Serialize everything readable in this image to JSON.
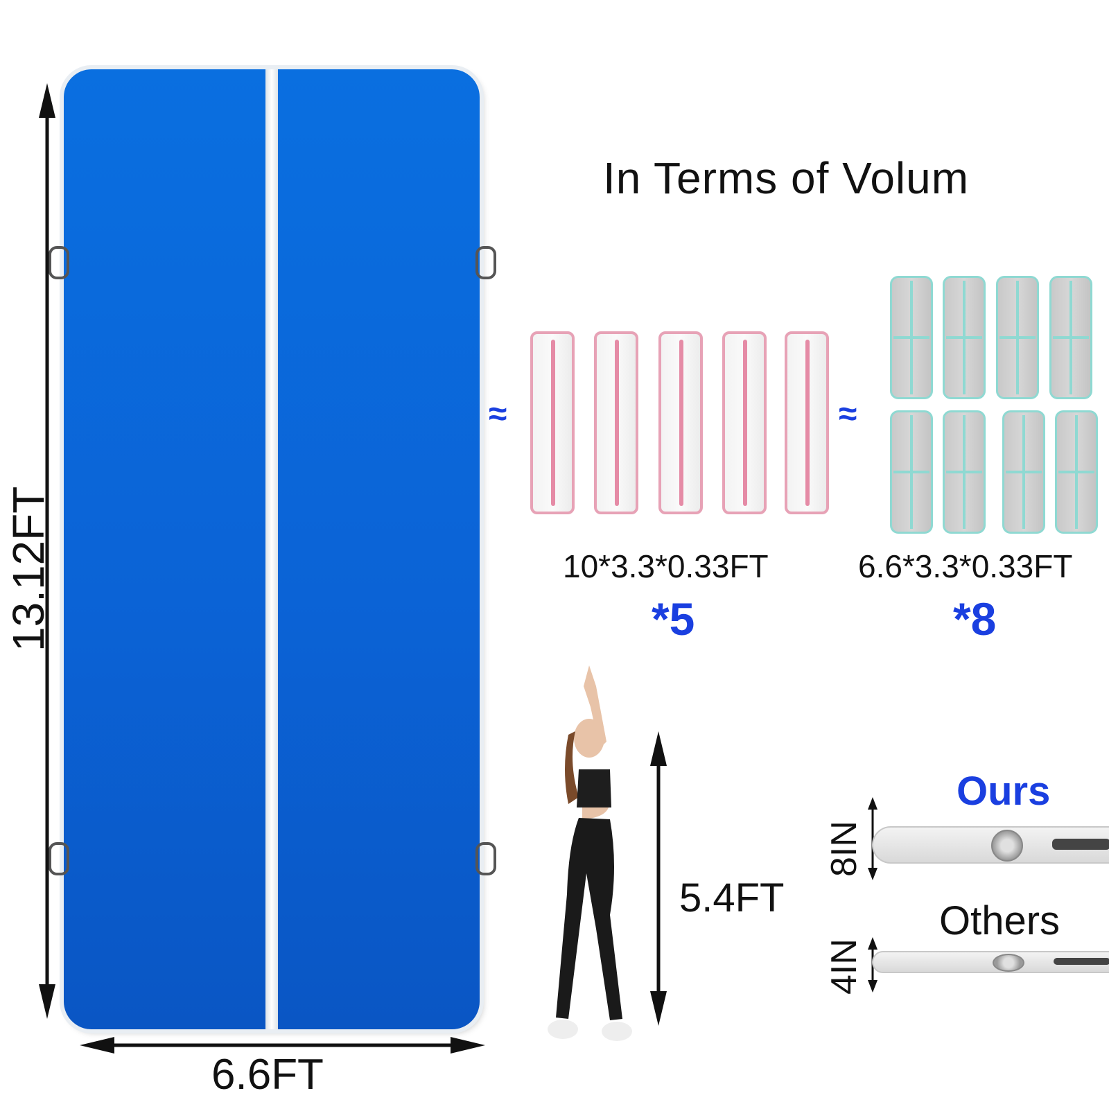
{
  "title": "In Terms of Volum",
  "main_mat": {
    "height_label": "13.12FT",
    "width_label": "6.6FT",
    "color": "#0b63d6"
  },
  "comparison": {
    "approx_symbol": "≈",
    "option_a": {
      "spec": "10*3.3*0.33FT",
      "multiplier": "*5",
      "count": 5,
      "accent": "#e58ba6"
    },
    "option_b": {
      "spec": "6.6*3.3*0.33FT",
      "multiplier": "*8",
      "count": 8,
      "accent": "#8fd9d2"
    }
  },
  "person": {
    "height_label": "5.4FT"
  },
  "thickness": {
    "ours_label": "Ours",
    "ours_value": "8IN",
    "others_label": "Others",
    "others_value": "4IN"
  },
  "colors": {
    "accent_blue": "#1a3fe0"
  }
}
